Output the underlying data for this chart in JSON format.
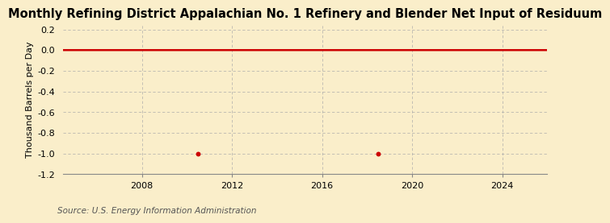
{
  "title": "Monthly Refining District Appalachian No. 1 Refinery and Blender Net Input of Residuum",
  "ylabel": "Thousand Barrels per Day",
  "source": "Source: U.S. Energy Information Administration",
  "background_color": "#faeeca",
  "line_color": "#cc0000",
  "line_width": 1.8,
  "ylim": [
    -1.2,
    0.25
  ],
  "yticks": [
    0.2,
    0.0,
    -0.2,
    -0.4,
    -0.6,
    -0.8,
    -1.0,
    -1.2
  ],
  "xlim_start": 2004.5,
  "xlim_end": 2026.0,
  "xticks": [
    2008,
    2012,
    2016,
    2020,
    2024
  ],
  "spike_points": [
    {
      "year": 2010.5,
      "value": -1.0
    },
    {
      "year": 2018.5,
      "value": -1.0
    }
  ],
  "dot_color": "#cc0000",
  "dot_size": 18,
  "title_fontsize": 10.5,
  "label_fontsize": 8,
  "tick_fontsize": 8,
  "source_fontsize": 7.5
}
